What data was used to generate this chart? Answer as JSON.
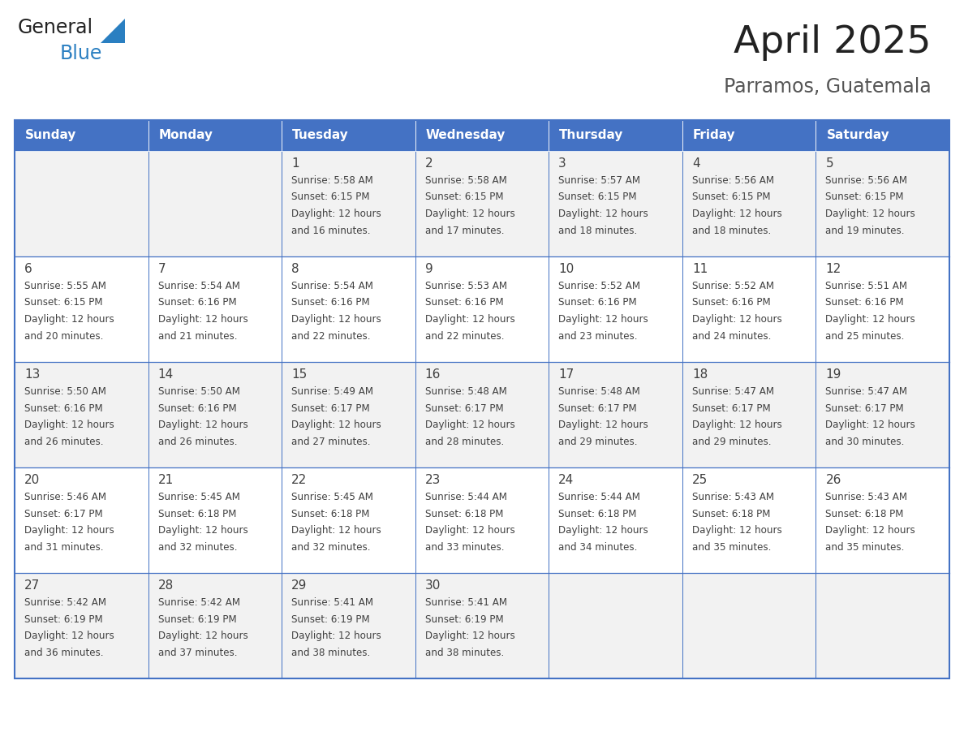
{
  "title": "April 2025",
  "subtitle": "Parramos, Guatemala",
  "header_bg_color": "#4472C4",
  "header_text_color": "#FFFFFF",
  "day_names": [
    "Sunday",
    "Monday",
    "Tuesday",
    "Wednesday",
    "Thursday",
    "Friday",
    "Saturday"
  ],
  "row_bg_colors": [
    "#F2F2F2",
    "#FFFFFF"
  ],
  "grid_line_color": "#4472C4",
  "cell_text_color": "#404040",
  "title_color": "#222222",
  "subtitle_color": "#555555",
  "calendar": [
    [
      {
        "day": "",
        "sunrise": "",
        "sunset": "",
        "daylight": ""
      },
      {
        "day": "",
        "sunrise": "",
        "sunset": "",
        "daylight": ""
      },
      {
        "day": "1",
        "sunrise": "5:58 AM",
        "sunset": "6:15 PM",
        "daylight": "12 hours and 16 minutes."
      },
      {
        "day": "2",
        "sunrise": "5:58 AM",
        "sunset": "6:15 PM",
        "daylight": "12 hours and 17 minutes."
      },
      {
        "day": "3",
        "sunrise": "5:57 AM",
        "sunset": "6:15 PM",
        "daylight": "12 hours and 18 minutes."
      },
      {
        "day": "4",
        "sunrise": "5:56 AM",
        "sunset": "6:15 PM",
        "daylight": "12 hours and 18 minutes."
      },
      {
        "day": "5",
        "sunrise": "5:56 AM",
        "sunset": "6:15 PM",
        "daylight": "12 hours and 19 minutes."
      }
    ],
    [
      {
        "day": "6",
        "sunrise": "5:55 AM",
        "sunset": "6:15 PM",
        "daylight": "12 hours and 20 minutes."
      },
      {
        "day": "7",
        "sunrise": "5:54 AM",
        "sunset": "6:16 PM",
        "daylight": "12 hours and 21 minutes."
      },
      {
        "day": "8",
        "sunrise": "5:54 AM",
        "sunset": "6:16 PM",
        "daylight": "12 hours and 22 minutes."
      },
      {
        "day": "9",
        "sunrise": "5:53 AM",
        "sunset": "6:16 PM",
        "daylight": "12 hours and 22 minutes."
      },
      {
        "day": "10",
        "sunrise": "5:52 AM",
        "sunset": "6:16 PM",
        "daylight": "12 hours and 23 minutes."
      },
      {
        "day": "11",
        "sunrise": "5:52 AM",
        "sunset": "6:16 PM",
        "daylight": "12 hours and 24 minutes."
      },
      {
        "day": "12",
        "sunrise": "5:51 AM",
        "sunset": "6:16 PM",
        "daylight": "12 hours and 25 minutes."
      }
    ],
    [
      {
        "day": "13",
        "sunrise": "5:50 AM",
        "sunset": "6:16 PM",
        "daylight": "12 hours and 26 minutes."
      },
      {
        "day": "14",
        "sunrise": "5:50 AM",
        "sunset": "6:16 PM",
        "daylight": "12 hours and 26 minutes."
      },
      {
        "day": "15",
        "sunrise": "5:49 AM",
        "sunset": "6:17 PM",
        "daylight": "12 hours and 27 minutes."
      },
      {
        "day": "16",
        "sunrise": "5:48 AM",
        "sunset": "6:17 PM",
        "daylight": "12 hours and 28 minutes."
      },
      {
        "day": "17",
        "sunrise": "5:48 AM",
        "sunset": "6:17 PM",
        "daylight": "12 hours and 29 minutes."
      },
      {
        "day": "18",
        "sunrise": "5:47 AM",
        "sunset": "6:17 PM",
        "daylight": "12 hours and 29 minutes."
      },
      {
        "day": "19",
        "sunrise": "5:47 AM",
        "sunset": "6:17 PM",
        "daylight": "12 hours and 30 minutes."
      }
    ],
    [
      {
        "day": "20",
        "sunrise": "5:46 AM",
        "sunset": "6:17 PM",
        "daylight": "12 hours and 31 minutes."
      },
      {
        "day": "21",
        "sunrise": "5:45 AM",
        "sunset": "6:18 PM",
        "daylight": "12 hours and 32 minutes."
      },
      {
        "day": "22",
        "sunrise": "5:45 AM",
        "sunset": "6:18 PM",
        "daylight": "12 hours and 32 minutes."
      },
      {
        "day": "23",
        "sunrise": "5:44 AM",
        "sunset": "6:18 PM",
        "daylight": "12 hours and 33 minutes."
      },
      {
        "day": "24",
        "sunrise": "5:44 AM",
        "sunset": "6:18 PM",
        "daylight": "12 hours and 34 minutes."
      },
      {
        "day": "25",
        "sunrise": "5:43 AM",
        "sunset": "6:18 PM",
        "daylight": "12 hours and 35 minutes."
      },
      {
        "day": "26",
        "sunrise": "5:43 AM",
        "sunset": "6:18 PM",
        "daylight": "12 hours and 35 minutes."
      }
    ],
    [
      {
        "day": "27",
        "sunrise": "5:42 AM",
        "sunset": "6:19 PM",
        "daylight": "12 hours and 36 minutes."
      },
      {
        "day": "28",
        "sunrise": "5:42 AM",
        "sunset": "6:19 PM",
        "daylight": "12 hours and 37 minutes."
      },
      {
        "day": "29",
        "sunrise": "5:41 AM",
        "sunset": "6:19 PM",
        "daylight": "12 hours and 38 minutes."
      },
      {
        "day": "30",
        "sunrise": "5:41 AM",
        "sunset": "6:19 PM",
        "daylight": "12 hours and 38 minutes."
      },
      {
        "day": "",
        "sunrise": "",
        "sunset": "",
        "daylight": ""
      },
      {
        "day": "",
        "sunrise": "",
        "sunset": "",
        "daylight": ""
      },
      {
        "day": "",
        "sunrise": "",
        "sunset": "",
        "daylight": ""
      }
    ]
  ]
}
